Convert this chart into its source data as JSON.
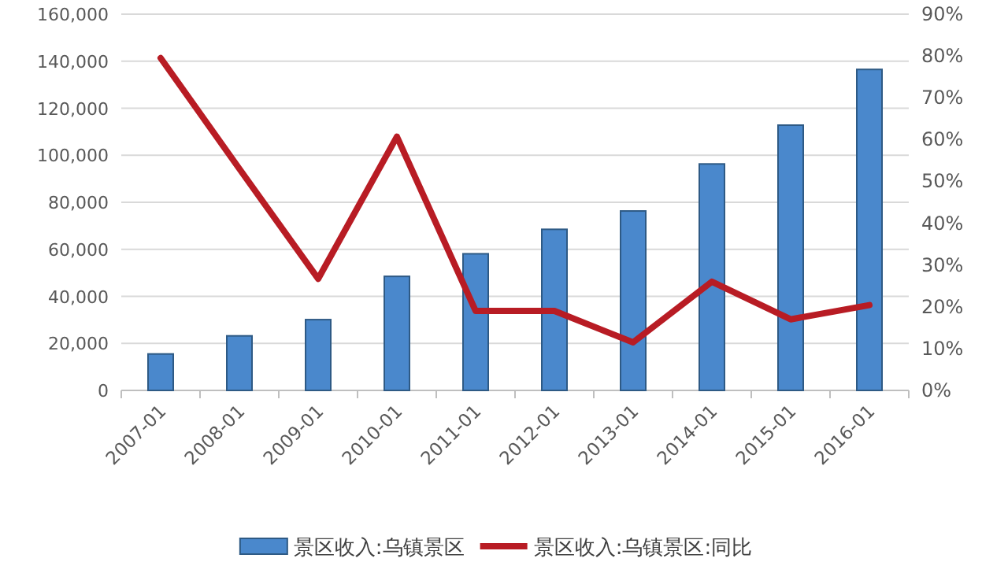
{
  "chart_data": {
    "type": "bar",
    "categories": [
      "2007-01",
      "2008-01",
      "2009-01",
      "2010-01",
      "2011-01",
      "2012-01",
      "2013-01",
      "2014-01",
      "2015-01",
      "2016-01"
    ],
    "series": [
      {
        "name": "景区收入:乌镇景区",
        "color": "#4a88cc",
        "values": [
          15500,
          23200,
          30100,
          48500,
          58100,
          68500,
          76300,
          96300,
          112800,
          136500
        ]
      },
      {
        "name": "景区收入:乌镇景区:同比",
        "type": "line",
        "axis": "y2",
        "color": "#b81c24",
        "values": [
          79.5,
          53,
          26.7,
          60.7,
          19,
          19,
          11.5,
          26,
          17,
          20.4
        ]
      }
    ],
    "ylim": [
      0,
      160000
    ],
    "yticks": [
      0,
      {
        "value": 20000,
        "label": "20,000"
      },
      {
        "value": 40000,
        "label": "40,000"
      },
      {
        "value": 60000,
        "label": "60,000"
      },
      {
        "value": 80000,
        "label": "80,000"
      },
      {
        "value": 100000,
        "label": "100,000"
      },
      {
        "value": 120000,
        "label": "120,000"
      },
      {
        "value": 140000,
        "label": "140,000"
      },
      {
        "value": 160000,
        "label": "160,000"
      }
    ],
    "y2lim": [
      0,
      90
    ],
    "y2ticks": [
      {
        "value": 0,
        "label": "0%"
      },
      {
        "value": 10,
        "label": "10%"
      },
      {
        "value": 20,
        "label": "20%"
      },
      {
        "value": 30,
        "label": "30%"
      },
      {
        "value": 40,
        "label": "40%"
      },
      {
        "value": 50,
        "label": "50%"
      },
      {
        "value": 60,
        "label": "60%"
      },
      {
        "value": 70,
        "label": "70%"
      },
      {
        "value": 80,
        "label": "80%"
      },
      {
        "value": 90,
        "label": "90%"
      }
    ],
    "grid": "y",
    "legend": "bottom",
    "marker": "none",
    "line_style": "solid"
  }
}
